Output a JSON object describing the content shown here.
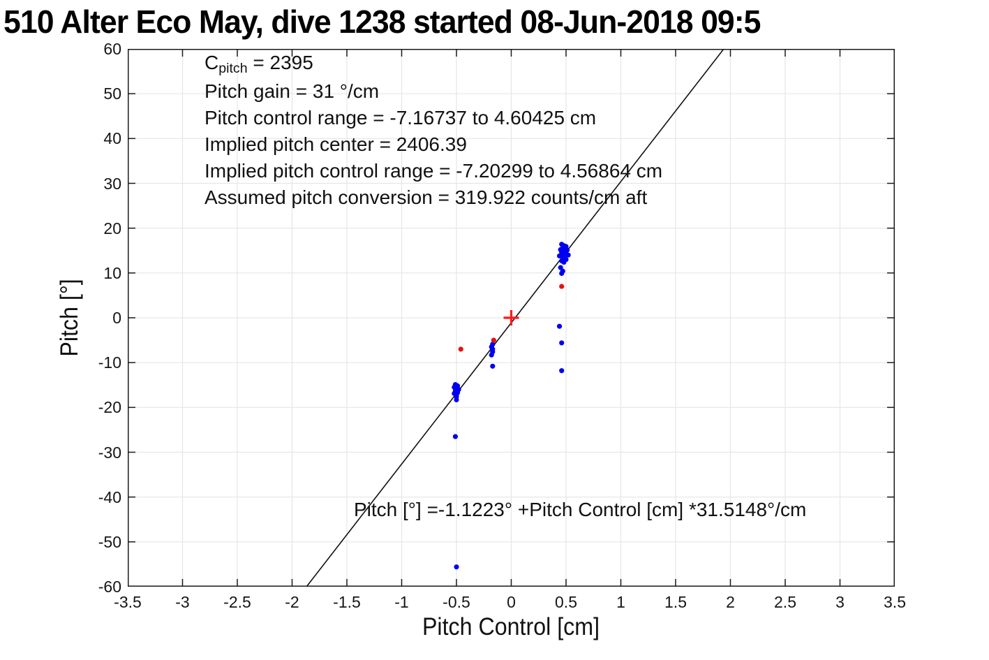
{
  "title": "510 Alter Eco May, dive 1238 started 08-Jun-2018 09:5",
  "style": {
    "blue": "#0000f0",
    "red": "#e61212",
    "plus_red": "#ff1a1a",
    "grid": "#e6e6e6",
    "axis": "#1a1a1a",
    "fit_line": "#111111",
    "background": "#ffffff"
  },
  "chart_data": {
    "type": "scatter",
    "title": "510 Alter Eco May, dive 1238 started 08-Jun-2018 09:5",
    "xlabel": "Pitch Control [cm]",
    "ylabel": "Pitch [°]",
    "xlim": [
      -3.5,
      3.5
    ],
    "ylim": [
      -60,
      60
    ],
    "xticks": [
      -3.5,
      -3,
      -2.5,
      -2,
      -1.5,
      -1,
      -0.5,
      0,
      0.5,
      1,
      1.5,
      2,
      2.5,
      3,
      3.5
    ],
    "xtick_labels": [
      "-3.5",
      "-3",
      "-2.5",
      "-2",
      "-1.5",
      "-1",
      "-0.5",
      "0",
      "0.5",
      "1",
      "1.5",
      "2",
      "2.5",
      "3",
      "3.5"
    ],
    "yticks": [
      60,
      50,
      40,
      30,
      20,
      10,
      0,
      -10,
      -20,
      -30,
      -40,
      -50,
      -60
    ],
    "ytick_labels": [
      "60",
      "50",
      "40",
      "30",
      "20",
      "10",
      "0",
      "-10",
      "-20",
      "-30",
      "-40",
      "-50",
      "-60"
    ],
    "grid": true,
    "legend": "none",
    "annotations": {
      "c_pitch": {
        "base": "C",
        "sub": "pitch",
        "rest": " = 2395"
      },
      "lines": [
        "Pitch gain = 31 °/cm",
        "Pitch control range = -7.16737 to 4.60425 cm",
        "Implied pitch center = 2406.39",
        "Implied pitch control range = -7.20299 to 4.56864 cm",
        "Assumed pitch conversion = 319.922 counts/cm aft"
      ],
      "equation": "Pitch [°] =-1.1223° +Pitch Control [cm] *31.5148°/cm"
    },
    "fit_line": {
      "intercept_deg": -1.1223,
      "slope_deg_per_cm": 31.5148
    },
    "series": [
      {
        "name": "pitch-observations-blue",
        "marker": "dot",
        "color": "#0000f0",
        "points": [
          [
            0.46,
            16.4
          ],
          [
            0.48,
            16.1
          ],
          [
            0.5,
            15.9
          ],
          [
            0.47,
            15.6
          ],
          [
            0.49,
            15.4
          ],
          [
            0.45,
            15.2
          ],
          [
            0.51,
            15.1
          ],
          [
            0.48,
            14.9
          ],
          [
            0.46,
            14.6
          ],
          [
            0.5,
            14.4
          ],
          [
            0.47,
            14.2
          ],
          [
            0.52,
            14.0
          ],
          [
            0.44,
            13.8
          ],
          [
            0.49,
            13.6
          ],
          [
            0.47,
            13.3
          ],
          [
            0.5,
            13.0
          ],
          [
            0.46,
            12.7
          ],
          [
            0.48,
            12.4
          ],
          [
            0.45,
            11.2
          ],
          [
            0.47,
            10.4
          ],
          [
            0.46,
            9.9
          ],
          [
            0.44,
            -1.9
          ],
          [
            0.46,
            -5.6
          ],
          [
            0.46,
            -11.8
          ],
          [
            -0.17,
            -5.9
          ],
          [
            -0.18,
            -6.5
          ],
          [
            -0.17,
            -7.0
          ],
          [
            -0.17,
            -7.6
          ],
          [
            -0.18,
            -8.3
          ],
          [
            -0.17,
            -10.8
          ],
          [
            -0.51,
            -14.9
          ],
          [
            -0.49,
            -15.2
          ],
          [
            -0.52,
            -15.5
          ],
          [
            -0.5,
            -15.8
          ],
          [
            -0.48,
            -16.0
          ],
          [
            -0.51,
            -16.3
          ],
          [
            -0.49,
            -16.7
          ],
          [
            -0.52,
            -16.9
          ],
          [
            -0.5,
            -17.2
          ],
          [
            -0.5,
            -17.6
          ],
          [
            -0.5,
            -18.3
          ],
          [
            -0.51,
            -26.5
          ],
          [
            -0.5,
            -55.6
          ]
        ]
      },
      {
        "name": "flagged-observations-red",
        "marker": "dot",
        "color": "#e61212",
        "points": [
          [
            -0.46,
            -7.0
          ],
          [
            -0.16,
            -5.0
          ],
          [
            0.46,
            7.0
          ]
        ]
      },
      {
        "name": "implied-center-marker",
        "marker": "plus",
        "color": "#ff1a1a",
        "points": [
          [
            0,
            0
          ]
        ]
      }
    ]
  }
}
